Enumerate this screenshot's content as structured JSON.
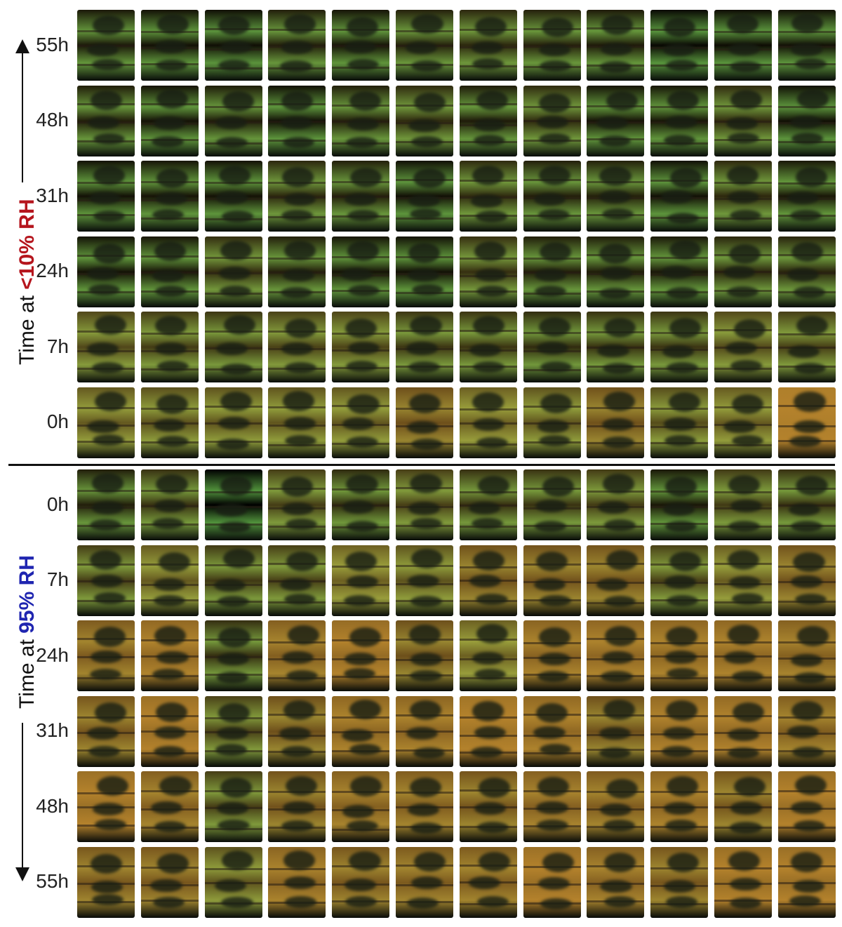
{
  "panels": [
    {
      "id": "dry",
      "title_prefix": "Time at ",
      "title_highlight": "<10% RH",
      "highlight_color": "#b5151d",
      "arrow_direction": "up",
      "rows": [
        "55h",
        "48h",
        "31h",
        "24h",
        "7h",
        "0h"
      ]
    },
    {
      "id": "wet",
      "title_prefix": "Time at ",
      "title_highlight": "95% RH",
      "highlight_color": "#1f25b0",
      "arrow_direction": "down",
      "rows": [
        "0h",
        "7h",
        "24h",
        "31h",
        "48h",
        "55h"
      ]
    }
  ],
  "columns_per_row": 12,
  "tile_palette": {
    "teal": "#2f9a86",
    "green": "#3f8f3c",
    "blue": "#2b6f8f",
    "yellow": "#b8a23a",
    "orange": "#b4822c",
    "dark": "#1e2b22"
  }
}
